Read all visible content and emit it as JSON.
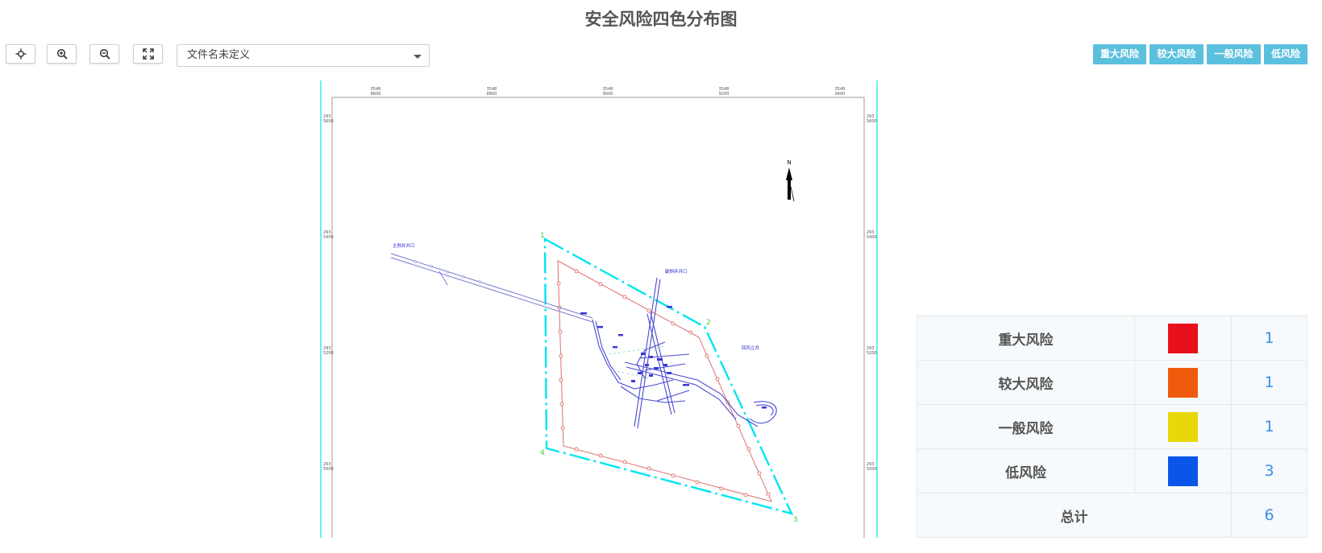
{
  "page": {
    "title": "安全风险四色分布图"
  },
  "toolbar": {
    "buttons": [
      {
        "name": "locate-button",
        "icon": "crosshair-icon"
      },
      {
        "name": "zoom-in-button",
        "icon": "zoom-in-icon"
      },
      {
        "name": "zoom-out-button",
        "icon": "zoom-out-icon"
      },
      {
        "name": "fullscreen-button",
        "icon": "expand-icon"
      }
    ],
    "file_select": {
      "value": "文件名未定义"
    }
  },
  "risk_filters": {
    "major": "重大风险",
    "large": "较大风险",
    "general": "一般风险",
    "low": "低风险"
  },
  "legend": {
    "rows": [
      {
        "label": "重大风险",
        "color": "#e8101b",
        "count": "1"
      },
      {
        "label": "较大风险",
        "color": "#f05a0c",
        "count": "1"
      },
      {
        "label": "一般风险",
        "color": "#e8d80a",
        "count": "1"
      },
      {
        "label": "低风险",
        "color": "#0a56e8",
        "count": "3"
      }
    ],
    "total_label": "总计",
    "total_count": "6"
  },
  "map": {
    "north_label": "N",
    "boundary_points": [
      "1",
      "2",
      "3",
      "4"
    ],
    "top_ticks": [
      [
        "3548",
        "8600"
      ],
      [
        "3548",
        "8800"
      ],
      [
        "3548",
        "9000"
      ],
      [
        "3548",
        "9200"
      ],
      [
        "3548",
        "9400"
      ]
    ],
    "side_ticks": [
      [
        "293",
        "5600"
      ],
      [
        "293",
        "5400"
      ],
      [
        "293",
        "5200"
      ],
      [
        "293",
        "5000"
      ]
    ],
    "right_ticks": [
      [
        "293",
        "5600"
      ],
      [
        "293",
        "5400"
      ],
      [
        "293",
        "5200"
      ],
      [
        "293",
        "5000"
      ]
    ],
    "annotations": [
      "主斜井井口",
      "副斜井井口",
      "回风立井"
    ]
  },
  "colors": {
    "accent": "#5bc0de",
    "boundary": "#00e5f0",
    "mine_lines": "#2a2ad0",
    "protection_line": "#e07070"
  }
}
